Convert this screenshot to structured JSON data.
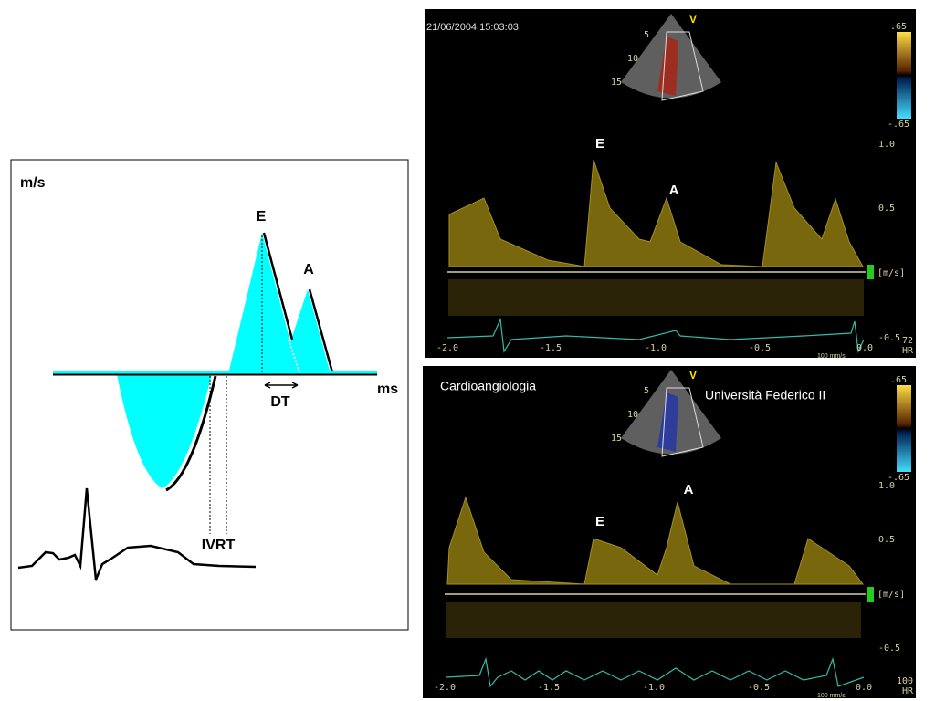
{
  "diagram": {
    "y_unit": "m/s",
    "x_unit": "ms",
    "peak_e": "E",
    "peak_a": "A",
    "dt": "DT",
    "ivrt": "IVRT"
  },
  "panels": [
    {
      "timestamp": "21/06/2004 15:03:03",
      "probe_marker": "V",
      "depth_labels": [
        "5",
        "10",
        "15"
      ],
      "color_scale": [
        ".65",
        "-.65"
      ],
      "velocity_labels": [
        "1.0",
        "0.5",
        "[m/s]",
        "-0.5"
      ],
      "time_labels": [
        "-2.0",
        "-1.5",
        "-1.0",
        "-0.5",
        "0.0"
      ],
      "sweep_speed": "100 mm/s",
      "heart_rate": "72",
      "heart_rate_unit": "HR",
      "peak_e": "E",
      "peak_a": "A"
    },
    {
      "institution_left": "Cardioangiologia",
      "institution_right": "Università Federico II",
      "probe_marker": "V",
      "depth_labels": [
        "5",
        "10",
        "15"
      ],
      "color_scale": [
        ".65",
        "-.65"
      ],
      "velocity_labels": [
        "1.0",
        "0.5",
        "[m/s]",
        "-0.5"
      ],
      "time_labels": [
        "-2.0",
        "-1.5",
        "-1.0",
        "-0.5",
        "0.0"
      ],
      "sweep_speed": "100 mm/s",
      "heart_rate": "100",
      "heart_rate_unit": "HR",
      "peak_e": "E",
      "peak_a": "A"
    }
  ]
}
